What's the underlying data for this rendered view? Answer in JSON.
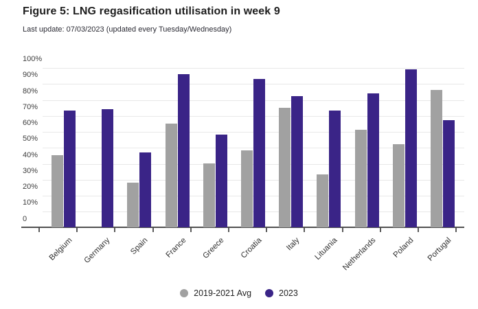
{
  "header": {
    "title": "Figure 5: LNG regasification utilisation in week 9",
    "subtitle": "Last update: 07/03/2023 (updated every Tuesday/Wednesday)"
  },
  "chart_data": {
    "type": "bar",
    "title": "Figure 5: LNG regasification utilisation in week 9",
    "subtitle": "Last update: 07/03/2023 (updated every Tuesday/Wednesday)",
    "categories": [
      "Belgium",
      "Germany",
      "Spain",
      "France",
      "Greece",
      "Croatia",
      "Italy",
      "Lituania",
      "Netherlands",
      "Poland",
      "Portugal"
    ],
    "series": [
      {
        "name": "2019-2021 Avg",
        "color": "#a1a1a1",
        "values": [
          45,
          null,
          28,
          65,
          40,
          48,
          75,
          33,
          61,
          52,
          86
        ]
      },
      {
        "name": "2023",
        "color": "#3a2487",
        "values": [
          73,
          74,
          47,
          96,
          58,
          93,
          82,
          73,
          84,
          99,
          67
        ]
      }
    ],
    "unit": "%",
    "ylim": [
      0,
      100
    ],
    "ytick_labels": [
      "100%",
      "90%",
      "80%",
      "70%",
      "60%",
      "50%",
      "40%",
      "30%",
      "20%",
      "10%",
      "0"
    ],
    "grid": true,
    "legend_position": "bottom",
    "colors": {
      "gridline": "#e8e8e8",
      "axis": "#4f4f4f",
      "text": "#303030"
    }
  }
}
